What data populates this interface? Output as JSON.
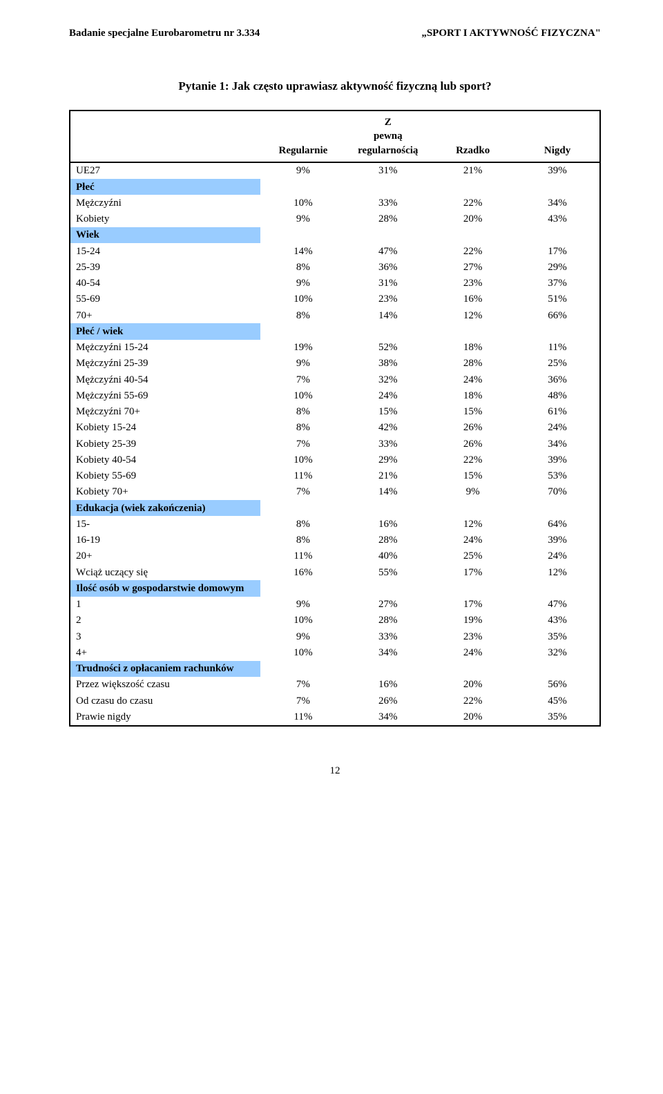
{
  "header": {
    "left": "Badanie specjalne Eurobarometru nr 3.334",
    "right": "„SPORT I AKTYWNOŚĆ FIZYCZNA\""
  },
  "title": "Pytanie 1: Jak często uprawiasz aktywność fizyczną lub sport?",
  "table": {
    "type": "table",
    "columns": [
      "",
      "Regularnie",
      "Z pewną regularnością",
      "Rzadko",
      "Nigdy"
    ],
    "section_bg": "#99ccff",
    "border_color": "#000000",
    "rows": [
      {
        "section": false,
        "label": "UE27",
        "cells": [
          "9%",
          "31%",
          "21%",
          "39%"
        ]
      },
      {
        "section": true,
        "label": "Płeć"
      },
      {
        "section": false,
        "label": "Mężczyźni",
        "cells": [
          "10%",
          "33%",
          "22%",
          "34%"
        ]
      },
      {
        "section": false,
        "label": "Kobiety",
        "cells": [
          "9%",
          "28%",
          "20%",
          "43%"
        ]
      },
      {
        "section": true,
        "label": "Wiek"
      },
      {
        "section": false,
        "label": "15-24",
        "cells": [
          "14%",
          "47%",
          "22%",
          "17%"
        ]
      },
      {
        "section": false,
        "label": "25-39",
        "cells": [
          "8%",
          "36%",
          "27%",
          "29%"
        ]
      },
      {
        "section": false,
        "label": "40-54",
        "cells": [
          "9%",
          "31%",
          "23%",
          "37%"
        ]
      },
      {
        "section": false,
        "label": "55-69",
        "cells": [
          "10%",
          "23%",
          "16%",
          "51%"
        ]
      },
      {
        "section": false,
        "label": "70+",
        "cells": [
          "8%",
          "14%",
          "12%",
          "66%"
        ]
      },
      {
        "section": true,
        "label": "Płeć / wiek"
      },
      {
        "section": false,
        "label": "Mężczyźni 15-24",
        "cells": [
          "19%",
          "52%",
          "18%",
          "11%"
        ]
      },
      {
        "section": false,
        "label": "Mężczyźni 25-39",
        "cells": [
          "9%",
          "38%",
          "28%",
          "25%"
        ]
      },
      {
        "section": false,
        "label": "Mężczyźni 40-54",
        "cells": [
          "7%",
          "32%",
          "24%",
          "36%"
        ]
      },
      {
        "section": false,
        "label": "Mężczyźni 55-69",
        "cells": [
          "10%",
          "24%",
          "18%",
          "48%"
        ]
      },
      {
        "section": false,
        "label": "Mężczyźni 70+",
        "cells": [
          "8%",
          "15%",
          "15%",
          "61%"
        ]
      },
      {
        "section": false,
        "label": "Kobiety 15-24",
        "cells": [
          "8%",
          "42%",
          "26%",
          "24%"
        ]
      },
      {
        "section": false,
        "label": "Kobiety 25-39",
        "cells": [
          "7%",
          "33%",
          "26%",
          "34%"
        ]
      },
      {
        "section": false,
        "label": "Kobiety 40-54",
        "cells": [
          "10%",
          "29%",
          "22%",
          "39%"
        ]
      },
      {
        "section": false,
        "label": "Kobiety 55-69",
        "cells": [
          "11%",
          "21%",
          "15%",
          "53%"
        ]
      },
      {
        "section": false,
        "label": "Kobiety 70+",
        "cells": [
          "7%",
          "14%",
          "9%",
          "70%"
        ]
      },
      {
        "section": true,
        "label": "Edukacja (wiek zakończenia)"
      },
      {
        "section": false,
        "label": "15-",
        "cells": [
          "8%",
          "16%",
          "12%",
          "64%"
        ]
      },
      {
        "section": false,
        "label": "16-19",
        "cells": [
          "8%",
          "28%",
          "24%",
          "39%"
        ]
      },
      {
        "section": false,
        "label": "20+",
        "cells": [
          "11%",
          "40%",
          "25%",
          "24%"
        ]
      },
      {
        "section": false,
        "label": "Wciąż uczący się",
        "cells": [
          "16%",
          "55%",
          "17%",
          "12%"
        ]
      },
      {
        "section": true,
        "label": "Ilość osób w gospodarstwie domowym"
      },
      {
        "section": false,
        "label": "1",
        "cells": [
          "9%",
          "27%",
          "17%",
          "47%"
        ]
      },
      {
        "section": false,
        "label": "2",
        "cells": [
          "10%",
          "28%",
          "19%",
          "43%"
        ]
      },
      {
        "section": false,
        "label": "3",
        "cells": [
          "9%",
          "33%",
          "23%",
          "35%"
        ]
      },
      {
        "section": false,
        "label": "4+",
        "cells": [
          "10%",
          "34%",
          "24%",
          "32%"
        ]
      },
      {
        "section": true,
        "label": "Trudności z opłacaniem rachunków"
      },
      {
        "section": false,
        "label": "Przez większość czasu",
        "cells": [
          "7%",
          "16%",
          "20%",
          "56%"
        ]
      },
      {
        "section": false,
        "label": "Od czasu do czasu",
        "cells": [
          "7%",
          "26%",
          "22%",
          "45%"
        ]
      },
      {
        "section": false,
        "label": "Prawie nigdy",
        "cells": [
          "11%",
          "34%",
          "20%",
          "35%"
        ]
      }
    ]
  },
  "page_number": "12"
}
